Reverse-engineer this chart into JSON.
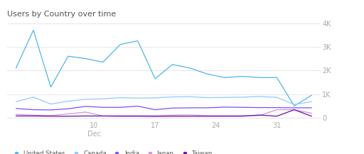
{
  "title": "Users by Country over time",
  "x_ticks": [
    10,
    17,
    24,
    31
  ],
  "x_tick_labels_top": [
    "10",
    "17",
    "24",
    "31"
  ],
  "x_tick_labels_bot": [
    "Dec",
    "",
    "",
    ""
  ],
  "ylim": [
    -100,
    4000
  ],
  "yticks": [
    0,
    1000,
    2000,
    3000,
    4000
  ],
  "ytick_labels": [
    "0",
    "1K",
    "2K",
    "3K",
    "4K"
  ],
  "background_color": "#ffffff",
  "grid_color": "#e8e8e8",
  "series": {
    "United States": {
      "color": "#4db6e8",
      "x": [
        1,
        3,
        5,
        7,
        9,
        11,
        13,
        15,
        17,
        19,
        21,
        23,
        25,
        27,
        29,
        31,
        33,
        35
      ],
      "y": [
        2100,
        3700,
        1300,
        2600,
        2500,
        2350,
        3100,
        3250,
        1650,
        2250,
        2100,
        1850,
        1700,
        1750,
        1700,
        1700,
        500,
        950
      ]
    },
    "Canada": {
      "color": "#90caf9",
      "x": [
        1,
        3,
        5,
        7,
        9,
        11,
        13,
        15,
        17,
        19,
        21,
        23,
        25,
        27,
        29,
        31,
        33,
        35
      ],
      "y": [
        680,
        870,
        580,
        700,
        780,
        800,
        850,
        830,
        840,
        880,
        890,
        850,
        860,
        870,
        900,
        860,
        560,
        680
      ]
    },
    "India": {
      "color": "#7c4dff",
      "x": [
        1,
        3,
        5,
        7,
        9,
        11,
        13,
        15,
        17,
        19,
        21,
        23,
        25,
        27,
        29,
        31,
        33,
        35
      ],
      "y": [
        390,
        340,
        330,
        380,
        480,
        440,
        440,
        490,
        340,
        410,
        420,
        420,
        450,
        440,
        430,
        430,
        420,
        420
      ]
    },
    "Japan": {
      "color": "#ce93d8",
      "x": [
        1,
        3,
        5,
        7,
        9,
        11,
        13,
        15,
        17,
        19,
        21,
        23,
        25,
        27,
        29,
        31,
        33,
        35
      ],
      "y": [
        140,
        110,
        95,
        160,
        240,
        75,
        90,
        90,
        90,
        110,
        120,
        90,
        90,
        90,
        90,
        340,
        340,
        190
      ]
    },
    "Taiwan": {
      "color": "#6a0dad",
      "x": [
        1,
        3,
        5,
        7,
        9,
        11,
        13,
        15,
        17,
        19,
        21,
        23,
        25,
        27,
        29,
        31,
        33,
        35
      ],
      "y": [
        75,
        75,
        65,
        65,
        75,
        75,
        65,
        65,
        55,
        65,
        65,
        65,
        65,
        65,
        115,
        65,
        340,
        65
      ]
    }
  },
  "legend": [
    "United States",
    "Canada",
    "India",
    "Japan",
    "Taiwan"
  ],
  "legend_colors": [
    "#4db6e8",
    "#90caf9",
    "#7c4dff",
    "#ce93d8",
    "#6a0dad"
  ],
  "title_fontsize": 8,
  "axis_fontsize": 7
}
